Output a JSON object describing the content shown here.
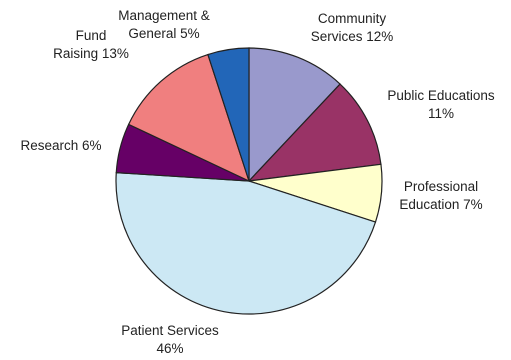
{
  "chart_data": {
    "type": "pie",
    "slices": [
      {
        "name": "Community Services",
        "value": 12,
        "label_lines": [
          "Community",
          "Services 12%"
        ],
        "color": "#9999cc"
      },
      {
        "name": "Public Educations",
        "value": 11,
        "label_lines": [
          "Public Educations",
          "11%"
        ],
        "color": "#993366"
      },
      {
        "name": "Professional Education",
        "value": 7,
        "label_lines": [
          "Professional",
          "Education 7%"
        ],
        "color": "#ffffcc"
      },
      {
        "name": "Patient Services",
        "value": 46,
        "label_lines": [
          "Patient Services",
          "46%"
        ],
        "color": "#cce8f4"
      },
      {
        "name": "Research",
        "value": 6,
        "label_lines": [
          "Research 6%"
        ],
        "color": "#660066"
      },
      {
        "name": "Fund Raising",
        "value": 13,
        "label_lines": [
          "Fund",
          "Raising 13%"
        ],
        "color": "#f07f7f"
      },
      {
        "name": "Management & General",
        "value": 5,
        "label_lines": [
          "Management &",
          "General 5%"
        ],
        "color": "#2266b8"
      }
    ]
  }
}
